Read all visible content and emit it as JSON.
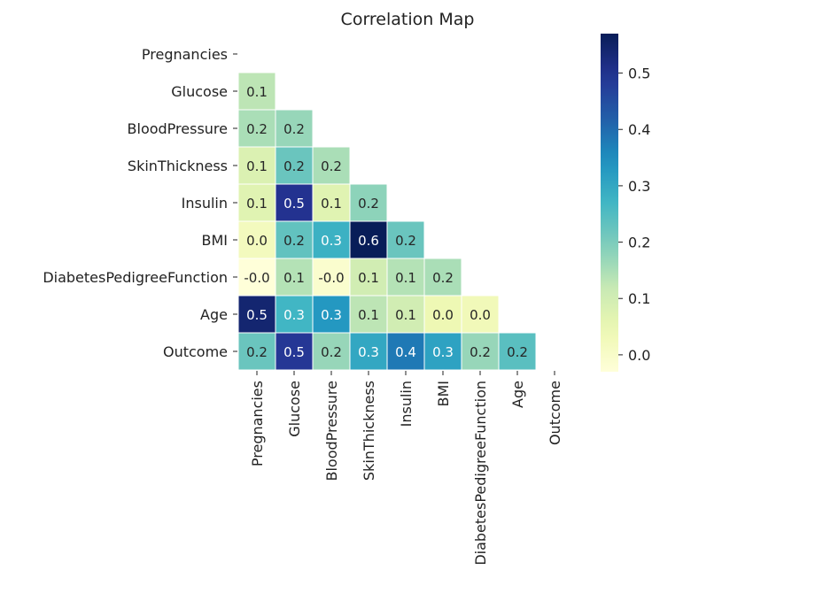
{
  "chart_data": {
    "type": "heatmap",
    "title": "Correlation Map",
    "x_labels": [
      "Pregnancies",
      "Glucose",
      "BloodPressure",
      "SkinThickness",
      "Insulin",
      "BMI",
      "DiabetesPedigreeFunction",
      "Age",
      "Outcome"
    ],
    "y_labels": [
      "Pregnancies",
      "Glucose",
      "BloodPressure",
      "SkinThickness",
      "Insulin",
      "BMI",
      "DiabetesPedigreeFunction",
      "Age",
      "Outcome"
    ],
    "values": [
      [
        null,
        null,
        null,
        null,
        null,
        null,
        null,
        null,
        null
      ],
      [
        0.13,
        null,
        null,
        null,
        null,
        null,
        null,
        null,
        null
      ],
      [
        0.15,
        0.17,
        null,
        null,
        null,
        null,
        null,
        null,
        null
      ],
      [
        0.08,
        0.22,
        0.15,
        null,
        null,
        null,
        null,
        null,
        null
      ],
      [
        0.07,
        0.5,
        0.07,
        0.18,
        null,
        null,
        null,
        null,
        null
      ],
      [
        0.02,
        0.23,
        0.28,
        0.57,
        0.22,
        null,
        null,
        null,
        null
      ],
      [
        -0.03,
        0.14,
        -0.01,
        0.1,
        0.14,
        0.15,
        null,
        null,
        null
      ],
      [
        0.54,
        0.27,
        0.33,
        0.13,
        0.1,
        0.04,
        0.03,
        null,
        null
      ],
      [
        0.22,
        0.49,
        0.17,
        0.3,
        0.38,
        0.31,
        0.17,
        0.24,
        null
      ]
    ],
    "labels": [
      [
        "",
        "",
        "",
        "",
        "",
        "",
        "",
        "",
        ""
      ],
      [
        "0.1",
        "",
        "",
        "",
        "",
        "",
        "",
        "",
        ""
      ],
      [
        "0.2",
        "0.2",
        "",
        "",
        "",
        "",
        "",
        "",
        ""
      ],
      [
        "0.1",
        "0.2",
        "0.2",
        "",
        "",
        "",
        "",
        "",
        ""
      ],
      [
        "0.1",
        "0.5",
        "0.1",
        "0.2",
        "",
        "",
        "",
        "",
        ""
      ],
      [
        "0.0",
        "0.2",
        "0.3",
        "0.6",
        "0.2",
        "",
        "",
        "",
        ""
      ],
      [
        "-0.0",
        "0.1",
        "-0.0",
        "0.1",
        "0.1",
        "0.2",
        "",
        "",
        ""
      ],
      [
        "0.5",
        "0.3",
        "0.3",
        "0.1",
        "0.1",
        "0.0",
        "0.0",
        "",
        ""
      ],
      [
        "0.2",
        "0.5",
        "0.2",
        "0.3",
        "0.4",
        "0.3",
        "0.2",
        "0.2",
        ""
      ]
    ],
    "colorbar": {
      "vmin": -0.03,
      "vmax": 0.57,
      "ticks": [
        0.0,
        0.1,
        0.2,
        0.3,
        0.4,
        0.5
      ],
      "tick_labels": [
        "0.0",
        "0.1",
        "0.2",
        "0.3",
        "0.4",
        "0.5"
      ]
    },
    "colormap": "YlGnBu",
    "mask": "upper-triangle-and-diagonal",
    "grid": false,
    "legend": "colorbar-right"
  }
}
